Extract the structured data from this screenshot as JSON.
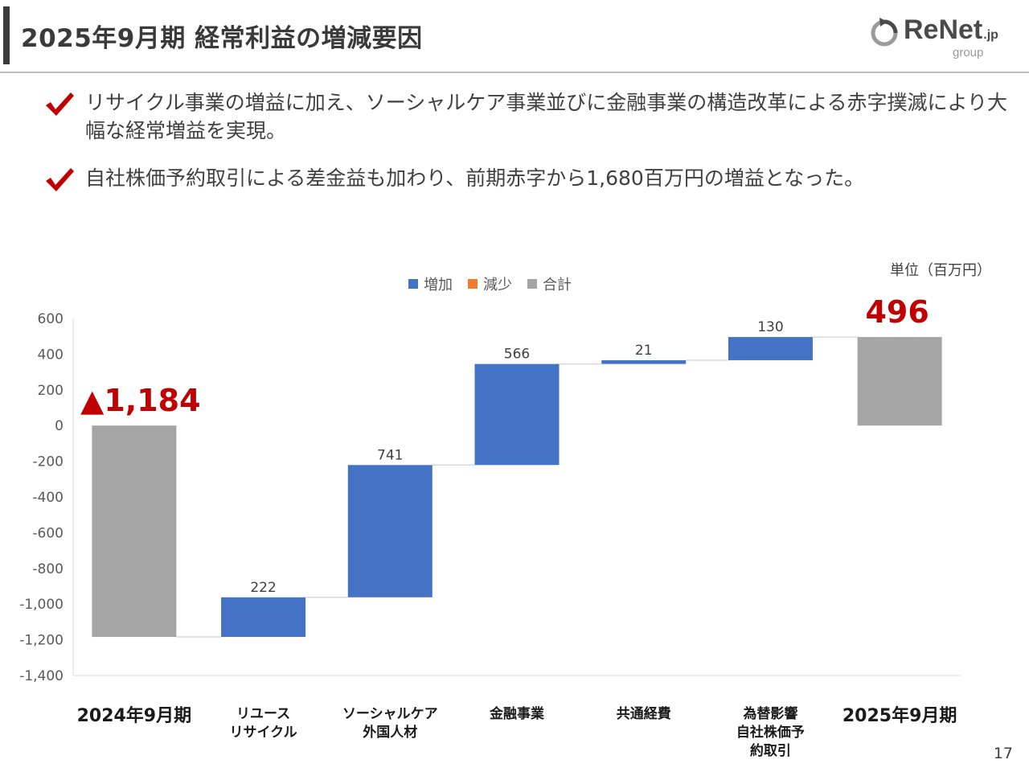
{
  "header": {
    "title": "2025年9月期 経常利益の増減要因"
  },
  "logo": {
    "name": "ReNet",
    "suffix": ".jp",
    "sub": "group"
  },
  "bullets": [
    {
      "text": "リサイクル事業の増益に加え、ソーシャルケア事業並びに金融事業の構造改革による赤字撲滅により大幅な経常増益を実現。"
    },
    {
      "text": "自社株価予約取引による差金益も加わり、前期赤字から1,680百万円の増益となった。"
    }
  ],
  "chart_data": {
    "type": "waterfall",
    "unit_label": "単位（百万円）",
    "legend": [
      {
        "label": "増加",
        "color": "#4472c4"
      },
      {
        "label": "減少",
        "color": "#ed7d31"
      },
      {
        "label": "合計",
        "color": "#a5a5a5"
      }
    ],
    "ylim": [
      -1400,
      600
    ],
    "yticks": [
      "600",
      "400",
      "200",
      "0",
      "-200",
      "-400",
      "-600",
      "-800",
      "-1,000",
      "-1,200",
      "-1,400"
    ],
    "ytick_values": [
      600,
      400,
      200,
      0,
      -200,
      -400,
      -600,
      -800,
      -1000,
      -1200,
      -1400
    ],
    "categories": [
      {
        "lines": [
          "2024年9月期"
        ],
        "kind": "total",
        "value": -1184,
        "base": 0,
        "big": true
      },
      {
        "lines": [
          "リユース",
          "リサイクル"
        ],
        "kind": "increase",
        "value": 222,
        "base": -1184
      },
      {
        "lines": [
          "ソーシャルケア",
          "外国人材"
        ],
        "kind": "increase",
        "value": 741,
        "base": -962
      },
      {
        "lines": [
          "金融事業"
        ],
        "kind": "increase",
        "value": 566,
        "base": -221
      },
      {
        "lines": [
          "共通経費"
        ],
        "kind": "increase",
        "value": 21,
        "base": 345
      },
      {
        "lines": [
          "為替影響",
          "自社株価予",
          "約取引"
        ],
        "kind": "increase",
        "value": 130,
        "base": 366
      },
      {
        "lines": [
          "2025年9月期"
        ],
        "kind": "total",
        "value": 496,
        "base": 0,
        "big": true
      }
    ],
    "data_labels": [
      "▲1,184",
      "222",
      "741",
      "566",
      "21",
      "130",
      "496"
    ],
    "highlight_color": "#c00000"
  },
  "footer": {
    "page_number": "17"
  }
}
